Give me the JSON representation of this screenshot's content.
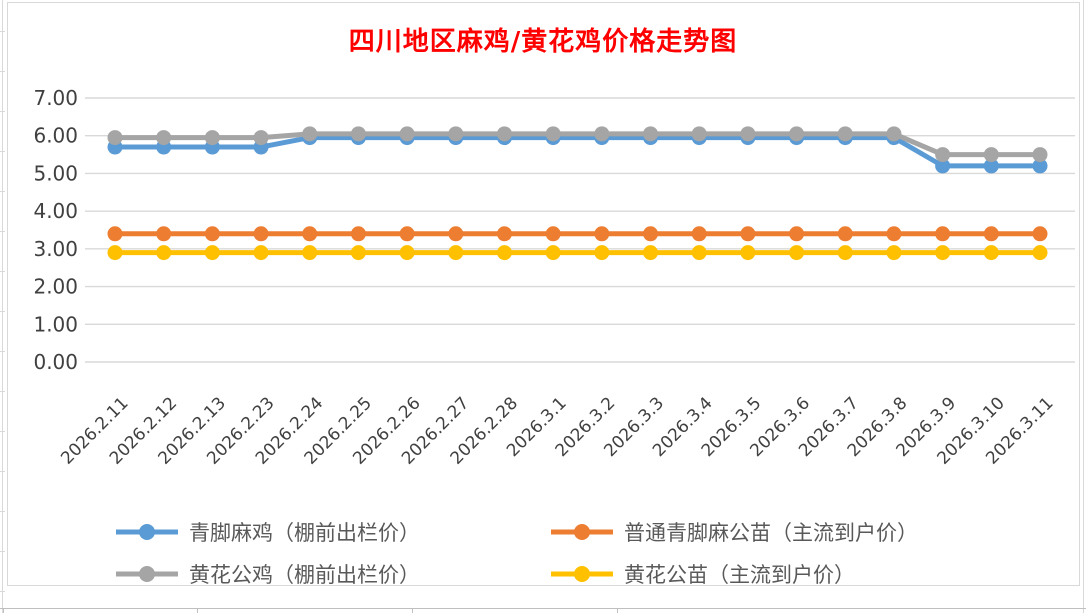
{
  "chart_data": {
    "type": "line",
    "title": "四川地区麻鸡/黄花鸡价格走势图",
    "title_color": "#FF0000",
    "categories": [
      "2026.2.11",
      "2026.2.12",
      "2026.2.13",
      "2026.2.23",
      "2026.2.24",
      "2026.2.25",
      "2026.2.26",
      "2026.2.27",
      "2026.2.28",
      "2026.3.1",
      "2026.3.2",
      "2026.3.3",
      "2026.3.4",
      "2026.3.5",
      "2026.3.6",
      "2026.3.7",
      "2026.3.8",
      "2026.3.9",
      "2026.3.10",
      "2026.3.11"
    ],
    "series": [
      {
        "name": "青脚麻鸡（棚前出栏价）",
        "color": "#5B9BD5",
        "values": [
          5.7,
          5.7,
          5.7,
          5.7,
          5.95,
          5.95,
          5.95,
          5.95,
          5.95,
          5.95,
          5.95,
          5.95,
          5.95,
          5.95,
          5.95,
          5.95,
          5.95,
          5.2,
          5.2,
          5.2
        ]
      },
      {
        "name": "普通青脚麻公苗（主流到户价）",
        "color": "#ED7D31",
        "values": [
          3.4,
          3.4,
          3.4,
          3.4,
          3.4,
          3.4,
          3.4,
          3.4,
          3.4,
          3.4,
          3.4,
          3.4,
          3.4,
          3.4,
          3.4,
          3.4,
          3.4,
          3.4,
          3.4,
          3.4
        ]
      },
      {
        "name": "黄花公鸡（棚前出栏价）",
        "color": "#A5A5A5",
        "values": [
          5.95,
          5.95,
          5.95,
          5.95,
          6.05,
          6.05,
          6.05,
          6.05,
          6.05,
          6.05,
          6.05,
          6.05,
          6.05,
          6.05,
          6.05,
          6.05,
          6.05,
          5.5,
          5.5,
          5.5
        ]
      },
      {
        "name": "黄花公苗（主流到户价）",
        "color": "#FFC000",
        "values": [
          2.9,
          2.9,
          2.9,
          2.9,
          2.9,
          2.9,
          2.9,
          2.9,
          2.9,
          2.9,
          2.9,
          2.9,
          2.9,
          2.9,
          2.9,
          2.9,
          2.9,
          2.9,
          2.9,
          2.9
        ]
      }
    ],
    "ylim": [
      0,
      7
    ],
    "ytick_step": 1,
    "ytick_labels": [
      "0.00",
      "1.00",
      "2.00",
      "3.00",
      "4.00",
      "5.00",
      "6.00",
      "7.00"
    ],
    "xlabel": "",
    "ylabel": "",
    "grid": true,
    "legend_position": "bottom",
    "axis_text_color": "#404040",
    "gridline_color": "#D9D9D9"
  }
}
